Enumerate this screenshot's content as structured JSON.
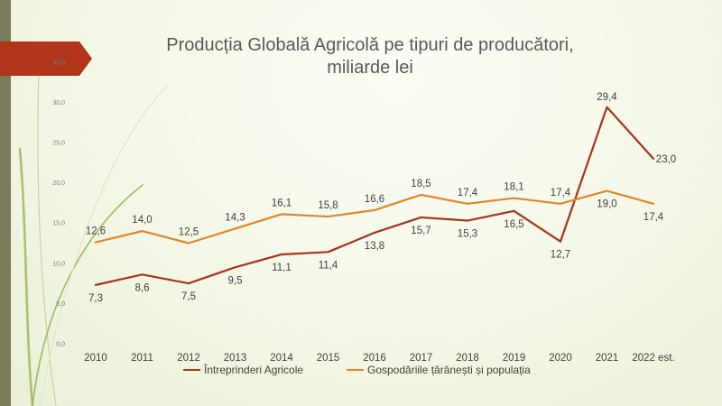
{
  "chart_data": {
    "type": "line",
    "title": "Producția Globală Agricolă pe tipuri de producători,",
    "title_line2": "miliarde lei",
    "categories": [
      "2010",
      "2011",
      "2012",
      "2013",
      "2014",
      "2015",
      "2016",
      "2017",
      "2018",
      "2019",
      "2020",
      "2021",
      "2022 est."
    ],
    "ylim": [
      0,
      35
    ],
    "yticks": [
      "0,0",
      "5,0",
      "10,0",
      "15,0",
      "20,0",
      "25,0",
      "30,0",
      "35,0"
    ],
    "grid": false,
    "legend_position": "bottom",
    "series": [
      {
        "name": "Întreprinderi Agricole",
        "color": "#a5341b",
        "values": [
          7.3,
          8.6,
          7.5,
          9.5,
          11.1,
          11.4,
          13.8,
          15.7,
          15.3,
          16.5,
          12.7,
          29.4,
          23.0
        ],
        "labels": [
          "7,3",
          "8,6",
          "7,5",
          "9,5",
          "11,1",
          "11,4",
          "13,8",
          "15,7",
          "15,3",
          "16,5",
          "12,7",
          "29,4",
          "23,0"
        ]
      },
      {
        "name": "Gospodăriile țărănești și populația",
        "color": "#e0862a",
        "values": [
          12.6,
          14.0,
          12.5,
          14.3,
          16.1,
          15.8,
          16.6,
          18.5,
          17.4,
          18.1,
          17.4,
          19.0,
          17.4
        ],
        "labels": [
          "12,6",
          "14,0",
          "12,5",
          "14,3",
          "16,1",
          "15,8",
          "16,6",
          "18,5",
          "17,4",
          "18,1",
          "17,4",
          "19,0",
          "17,4"
        ]
      }
    ]
  },
  "colors": {
    "accent_bar": "#b0351b",
    "side_band": "#7b7b58",
    "swirl": "#a9bf6a"
  }
}
